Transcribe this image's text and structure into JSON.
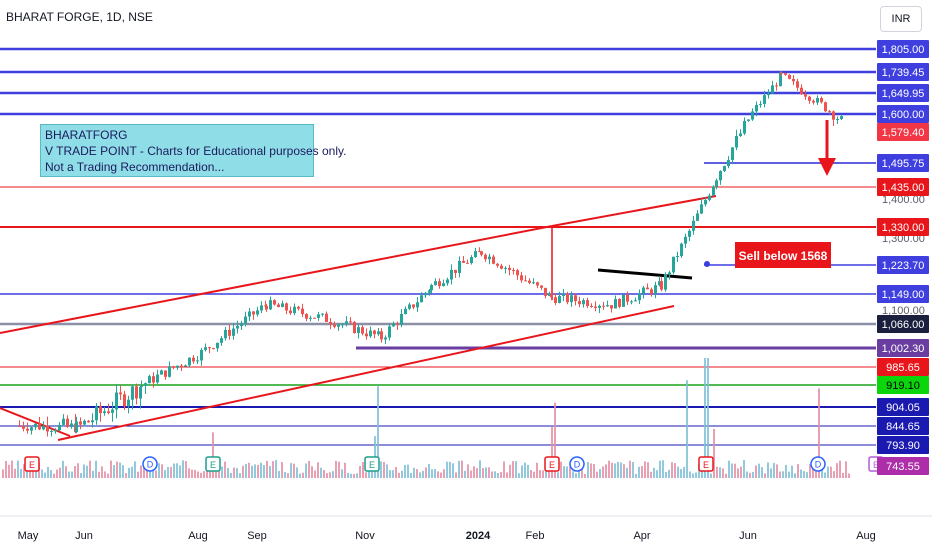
{
  "header": {
    "title": "BHARAT FORGE, 1D, NSE",
    "currency": "INR"
  },
  "note": {
    "lines": [
      "BHARATFORG",
      "V TRADE POINT - Charts for Educational purposes only.",
      "Not a Trading Recommendation..."
    ]
  },
  "callout": {
    "text": "Sell below 1568",
    "color": "#e8161b"
  },
  "colors": {
    "up": "#26a69a",
    "down": "#ef5350",
    "blue_level": "#3f3fe0",
    "red_level": "#e8161b",
    "purple_level": "#6a3ea1"
  },
  "chart_data": {
    "type": "candlestick",
    "x_axis": {
      "labels": [
        "May",
        "Jun",
        "Aug",
        "Sep",
        "Nov",
        "2024",
        "Feb",
        "Apr",
        "Jun",
        "Aug"
      ],
      "bold": [
        "2024"
      ]
    },
    "y_axis": {
      "tick_labels": [
        1400.0,
        1300.0,
        1100.0
      ],
      "level_labels": [
        {
          "value": "1,805.00",
          "color": "#3f3fe0",
          "fg": "#ffffff"
        },
        {
          "value": "1,739.45",
          "color": "#3f3fe0",
          "fg": "#ffffff"
        },
        {
          "value": "1,649.95",
          "color": "#3f3fe0",
          "fg": "#ffffff"
        },
        {
          "value": "1,600.00",
          "color": "#3f3fe0",
          "fg": "#ffffff"
        },
        {
          "value": "1,579.40",
          "color": "#f23645",
          "fg": "#ffffff"
        },
        {
          "value": "1,495.75",
          "color": "#3f3fe0",
          "fg": "#ffffff"
        },
        {
          "value": "1,435.00",
          "color": "#e8161b",
          "fg": "#ffffff"
        },
        {
          "value": "1,330.00",
          "color": "#e8161b",
          "fg": "#ffffff"
        },
        {
          "value": "1,223.70",
          "color": "#3f3fe0",
          "fg": "#ffffff"
        },
        {
          "value": "1,149.00",
          "color": "#3f3fe0",
          "fg": "#ffffff"
        },
        {
          "value": "1,066.00",
          "color": "#1a1f3d",
          "fg": "#ffffff"
        },
        {
          "value": "1,002.30",
          "color": "#6a3ea1",
          "fg": "#ffffff"
        },
        {
          "value": "985.65",
          "color": "#e8161b",
          "fg": "#ffffff"
        },
        {
          "value": "919.10",
          "color": "#0bd60b",
          "fg": "#000000"
        },
        {
          "value": "904.05",
          "color": "#1a1ab0",
          "fg": "#ffffff"
        },
        {
          "value": "844.65",
          "color": "#1a1ab0",
          "fg": "#ffffff"
        },
        {
          "value": "793.90",
          "color": "#1a1ab0",
          "fg": "#ffffff"
        },
        {
          "value": "743.55",
          "color": "#ad2ea8",
          "fg": "#ffffff"
        }
      ]
    },
    "levels": [
      1805.0,
      1739.45,
      1649.95,
      1600.0,
      1495.75,
      1435.0,
      1330.0,
      1223.7,
      1149.0,
      1066.0,
      1002.3,
      985.65,
      919.1,
      904.05,
      844.65,
      793.9,
      743.55
    ],
    "key_points": [
      {
        "month": "May-2023",
        "close": 845
      },
      {
        "month": "Jun-2023",
        "close": 840
      },
      {
        "month": "Jul-2023",
        "close": 905
      },
      {
        "month": "Aug-2023",
        "close": 990
      },
      {
        "month": "Sep-2023",
        "close": 1120
      },
      {
        "month": "Oct-2023",
        "close": 1080
      },
      {
        "month": "Nov-2023",
        "close": 1030
      },
      {
        "month": "Dec-2023",
        "close": 1170
      },
      {
        "month": "Jan-2024",
        "close": 1260
      },
      {
        "month": "Feb-2024",
        "close": 1140
      },
      {
        "month": "Mar-2024",
        "close": 1120
      },
      {
        "month": "Apr-2024",
        "close": 1170
      },
      {
        "month": "May-2024",
        "close": 1460
      },
      {
        "month": "Jun-2024",
        "close": 1720
      },
      {
        "month": "Jul-2024",
        "close": 1579.4
      }
    ],
    "last_close": 1579.4,
    "events": [
      {
        "type": "E",
        "x_label": "May"
      },
      {
        "type": "D",
        "x_label": "Jul"
      },
      {
        "type": "E",
        "x_label": "Aug"
      },
      {
        "type": "E",
        "x_label": "Nov"
      },
      {
        "type": "E",
        "x_label": "Feb"
      },
      {
        "type": "D",
        "x_label": "Feb"
      },
      {
        "type": "E",
        "x_label": "May"
      },
      {
        "type": "D",
        "x_label": "Jul"
      },
      {
        "type": "E",
        "x_label": "Aug"
      }
    ]
  }
}
